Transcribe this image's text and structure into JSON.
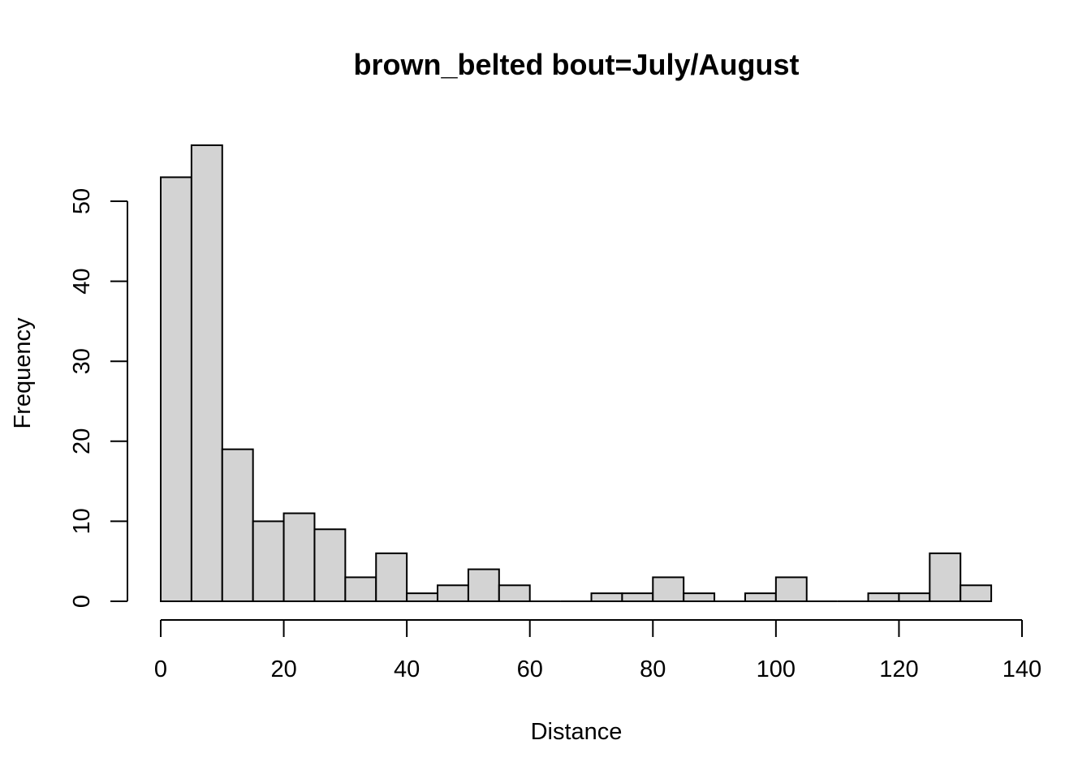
{
  "chart_data": {
    "type": "bar",
    "title": "brown_belted  bout=July/August",
    "xlabel": "Distance",
    "ylabel": "Frequency",
    "bin_width": 5,
    "bin_starts": [
      0,
      5,
      10,
      15,
      20,
      25,
      30,
      35,
      40,
      45,
      50,
      55,
      60,
      65,
      70,
      75,
      80,
      85,
      90,
      95,
      100,
      105,
      110,
      115,
      120,
      125,
      130
    ],
    "values": [
      53,
      57,
      19,
      10,
      11,
      9,
      3,
      6,
      1,
      2,
      4,
      2,
      0,
      0,
      1,
      1,
      3,
      1,
      0,
      1,
      3,
      0,
      0,
      1,
      1,
      6,
      2
    ],
    "xlim": [
      0,
      140
    ],
    "ylim": [
      0,
      57
    ],
    "x_ticks": [
      0,
      20,
      40,
      60,
      80,
      100,
      120,
      140
    ],
    "y_ticks": [
      0,
      10,
      20,
      30,
      40,
      50
    ],
    "grid": false,
    "bar_color": "#d3d3d3",
    "edge_color": "#000000"
  }
}
